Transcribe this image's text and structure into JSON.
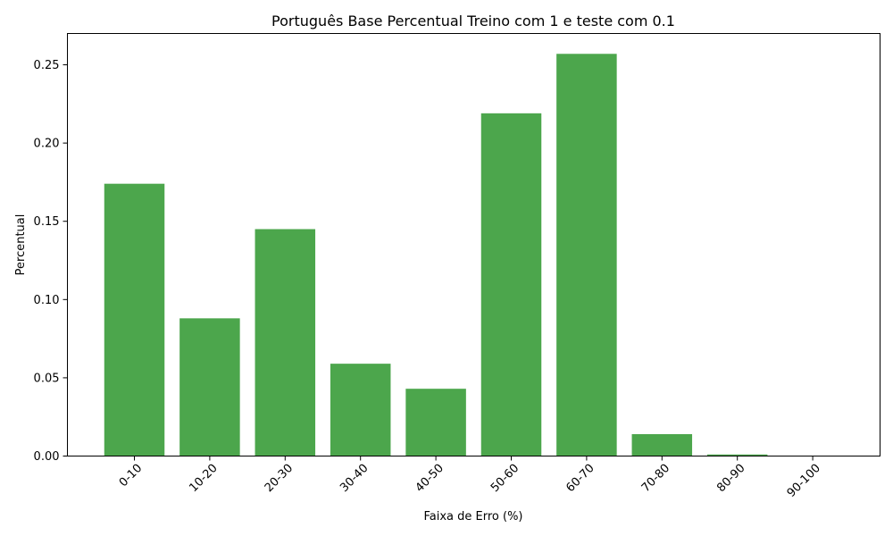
{
  "chart_data": {
    "type": "bar",
    "title": "Português Base Percentual Treino com 1 e teste com 0.1",
    "xlabel": "Faixa de Erro (%)",
    "ylabel": "Percentual",
    "categories": [
      "0-10",
      "10-20",
      "20-30",
      "30-40",
      "40-50",
      "50-60",
      "60-70",
      "70-80",
      "80-90",
      "90-100"
    ],
    "values": [
      0.174,
      0.088,
      0.145,
      0.059,
      0.043,
      0.219,
      0.257,
      0.014,
      0.001,
      0.0
    ],
    "yticks": [
      "0.00",
      "0.05",
      "0.10",
      "0.15",
      "0.20",
      "0.25"
    ],
    "ylim": [
      0,
      0.27
    ],
    "bar_color": "#4ca64c",
    "grid": false,
    "legend": "none"
  }
}
